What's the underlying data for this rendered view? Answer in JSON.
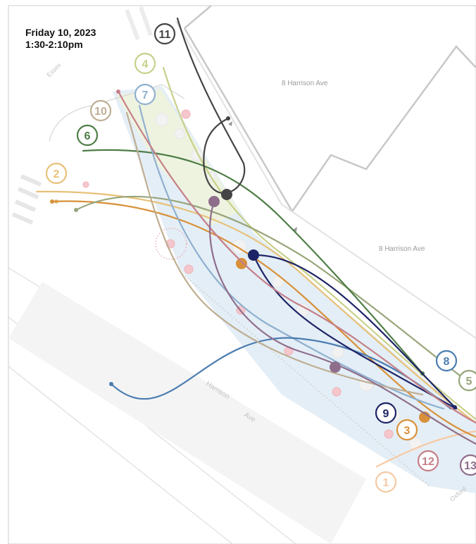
{
  "header": {
    "date": "Friday 10, 2023",
    "time": "1:30-2:10pm"
  },
  "map_labels": {
    "building_top": "8  Harrison  Ave",
    "building_mid": "8  Harrison  Ave",
    "street_main_1": "Harrison",
    "street_main_2": "Ave",
    "street_essex": "Essex",
    "street_oxford": "Oxford"
  },
  "colors": {
    "building_outline": "#c8c8c8",
    "plaza_fill": "#e4eef6",
    "plaza_green": "#eef3e0",
    "pink_dot": "#f5c6cc"
  },
  "tracks": [
    {
      "id": "1",
      "label": "1",
      "color": "#f6c9a4"
    },
    {
      "id": "2",
      "label": "2",
      "color": "#e8c178"
    },
    {
      "id": "3",
      "label": "3",
      "color": "#d8913a"
    },
    {
      "id": "4",
      "label": "4",
      "color": "#c8d08a"
    },
    {
      "id": "5",
      "label": "5",
      "color": "#98a67a"
    },
    {
      "id": "6",
      "label": "6",
      "color": "#4e7d46"
    },
    {
      "id": "7",
      "label": "7",
      "color": "#8fb0cf"
    },
    {
      "id": "8",
      "label": "8",
      "color": "#4b7db0"
    },
    {
      "id": "9",
      "label": "9",
      "color": "#1d2466"
    },
    {
      "id": "10",
      "label": "10",
      "color": "#bfae93"
    },
    {
      "id": "11",
      "label": "11",
      "color": "#444444"
    },
    {
      "id": "12",
      "label": "12",
      "color": "#c57f88"
    },
    {
      "id": "13",
      "label": "13",
      "color": "#8f6e8c"
    }
  ]
}
